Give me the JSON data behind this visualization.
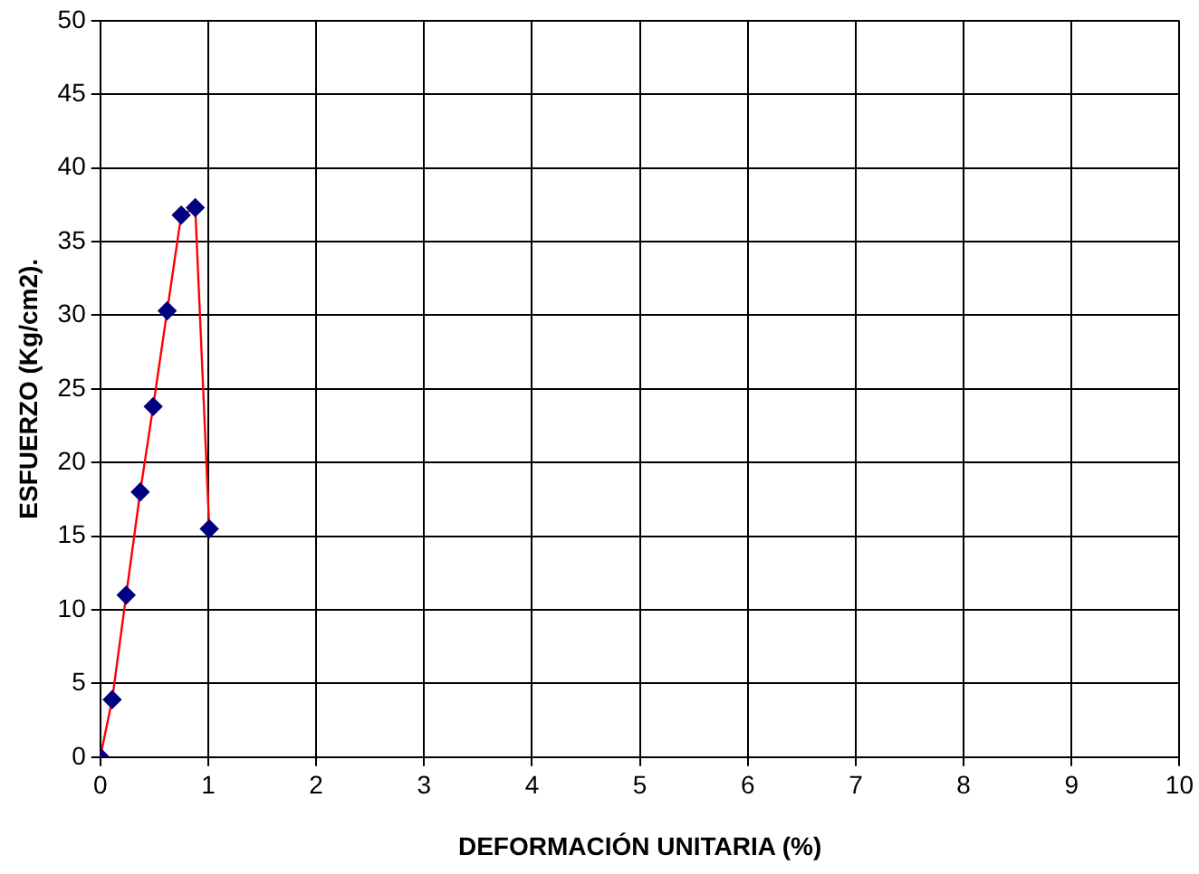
{
  "chart_data": {
    "type": "line",
    "xlabel": "DEFORMACIÓN UNITARIA (%)",
    "ylabel": "ESFUERZO (Kg/cm2).",
    "x": [
      0,
      0.11,
      0.24,
      0.37,
      0.49,
      0.62,
      0.75,
      0.88,
      1.01
    ],
    "series": [
      {
        "color": "#ff0000",
        "colors": [
          "#000080",
          "#000080",
          "#000080",
          "#000080",
          "#000080",
          "#000080",
          "#000080",
          "#000080",
          "#000080"
        ],
        "values": [
          0,
          3.9,
          11.0,
          18.0,
          23.8,
          30.3,
          36.8,
          37.3,
          15.5
        ]
      }
    ],
    "marker": "diamond",
    "xlim": [
      0,
      10
    ],
    "xticks": [
      0,
      1,
      2,
      3,
      4,
      5,
      6,
      7,
      8,
      9,
      10
    ],
    "ylim": [
      0,
      50
    ],
    "yticks": [
      0,
      5,
      10,
      15,
      20,
      25,
      30,
      35,
      40,
      45,
      50
    ],
    "grid": true,
    "legend": false
  }
}
